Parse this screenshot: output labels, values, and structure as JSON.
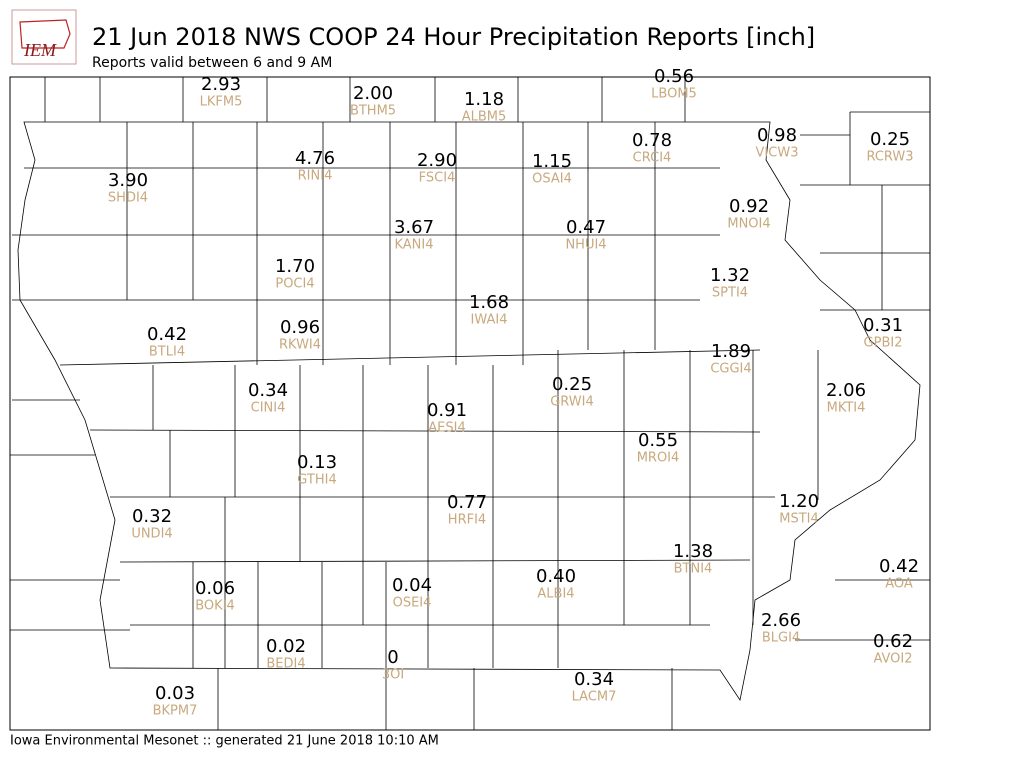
{
  "header": {
    "logo_text": "IEM",
    "title": "21 Jun 2018 NWS COOP 24 Hour Precipitation Reports [inch]",
    "subtitle": "Reports valid between 6 and 9 AM"
  },
  "stations": [
    {
      "value": "2.93",
      "id": "LKFM5"
    },
    {
      "value": "2.00",
      "id": "BTHM5"
    },
    {
      "value": "1.18",
      "id": "ALBM5"
    },
    {
      "value": "0.56",
      "id": "LBOM5"
    },
    {
      "value": "3.90",
      "id": "SHDI4"
    },
    {
      "value": "4.76",
      "id": "RINI4"
    },
    {
      "value": "2.90",
      "id": "FSCI4"
    },
    {
      "value": "1.15",
      "id": "OSAI4"
    },
    {
      "value": "0.78",
      "id": "CRCI4"
    },
    {
      "value": "0.98",
      "id": "VICW3"
    },
    {
      "value": "0.25",
      "id": "RCRW3"
    },
    {
      "value": "0.92",
      "id": "MNOI4"
    },
    {
      "value": "3.67",
      "id": "KANI4"
    },
    {
      "value": "0.47",
      "id": "NHUI4"
    },
    {
      "value": "1.70",
      "id": "POCI4"
    },
    {
      "value": "1.32",
      "id": "SPTI4"
    },
    {
      "value": "1.68",
      "id": "IWAI4"
    },
    {
      "value": "0.42",
      "id": "BTLI4"
    },
    {
      "value": "0.96",
      "id": "RKWI4"
    },
    {
      "value": "0.31",
      "id": "GPBI2"
    },
    {
      "value": "1.89",
      "id": "CGGI4"
    },
    {
      "value": "0.25",
      "id": "GRWI4"
    },
    {
      "value": "2.06",
      "id": "MKTI4"
    },
    {
      "value": "0.34",
      "id": "CINI4"
    },
    {
      "value": "0.91",
      "id": "AESI4"
    },
    {
      "value": "0.55",
      "id": "MROI4"
    },
    {
      "value": "0.13",
      "id": "GTHI4"
    },
    {
      "value": "0.77",
      "id": "HRFI4"
    },
    {
      "value": "1.20",
      "id": "MSTI4"
    },
    {
      "value": "0.32",
      "id": "UNDI4"
    },
    {
      "value": "1.38",
      "id": "BTNI4"
    },
    {
      "value": "0.42",
      "id": "AOA"
    },
    {
      "value": "0.04",
      "id": "OSEI4"
    },
    {
      "value": "0.40",
      "id": "ALBI4"
    },
    {
      "value": "0.06",
      "id": "BOKI4"
    },
    {
      "value": "2.66",
      "id": "BLGI4"
    },
    {
      "value": "0.62",
      "id": "AVOI2"
    },
    {
      "value": "0.02",
      "id": "BEDI4"
    },
    {
      "value": "0",
      "id": "3OI"
    },
    {
      "value": "0.34",
      "id": "LACM7"
    },
    {
      "value": "0.03",
      "id": "BKPM7"
    }
  ],
  "footer": "Iowa Environmental Mesonet :: generated 21 June 2018 10:10 AM"
}
